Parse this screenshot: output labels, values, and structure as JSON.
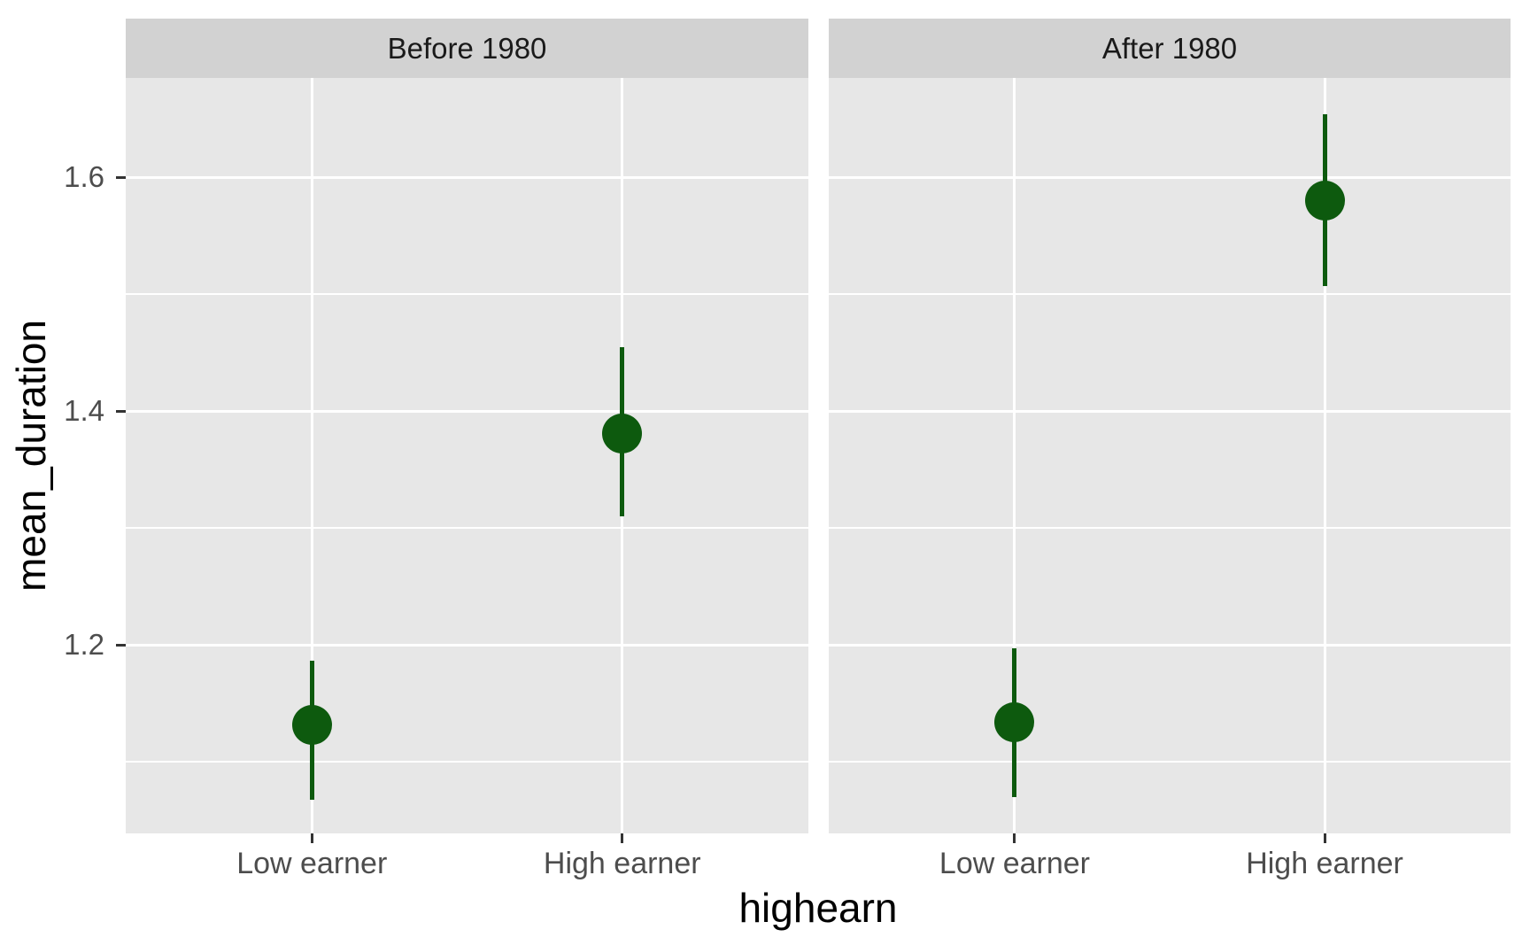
{
  "chart_data": {
    "type": "pointrange",
    "faceted": true,
    "facet_labels": [
      "Before 1980",
      "After 1980"
    ],
    "x_categories": [
      "Low earner",
      "High earner"
    ],
    "series": [
      {
        "facet": "Before 1980",
        "points": [
          {
            "x": "Low earner",
            "y": 1.132,
            "ymin": 1.068,
            "ymax": 1.187
          },
          {
            "x": "High earner",
            "y": 1.381,
            "ymin": 1.31,
            "ymax": 1.455
          }
        ]
      },
      {
        "facet": "After 1980",
        "points": [
          {
            "x": "Low earner",
            "y": 1.134,
            "ymin": 1.07,
            "ymax": 1.197
          },
          {
            "x": "High earner",
            "y": 1.58,
            "ymin": 1.507,
            "ymax": 1.654
          }
        ]
      }
    ],
    "title": "",
    "xlabel": "highearn",
    "ylabel": "mean_duration",
    "y_ticks": [
      1.2,
      1.4,
      1.6
    ],
    "y_tick_labels": [
      "1.2",
      "1.4",
      "1.6"
    ],
    "y_minor_ticks": [
      1.1,
      1.3,
      1.5
    ],
    "ylim": [
      1.039,
      1.685
    ],
    "grid": "white major and minor horizontal lines, white vertical major lines, on grey panel",
    "legend_position": "none"
  },
  "style": {
    "background": "#ffffff",
    "panel_bg": "#e7e7e7",
    "strip_bg": "#d2d2d2",
    "grid_color": "#ffffff",
    "tick_color": "#333333",
    "tick_label_color": "#4d4d4d",
    "strip_text_color": "#1a1a1a",
    "axis_title_color": "#000000",
    "point_color": "#0d5a0e"
  }
}
